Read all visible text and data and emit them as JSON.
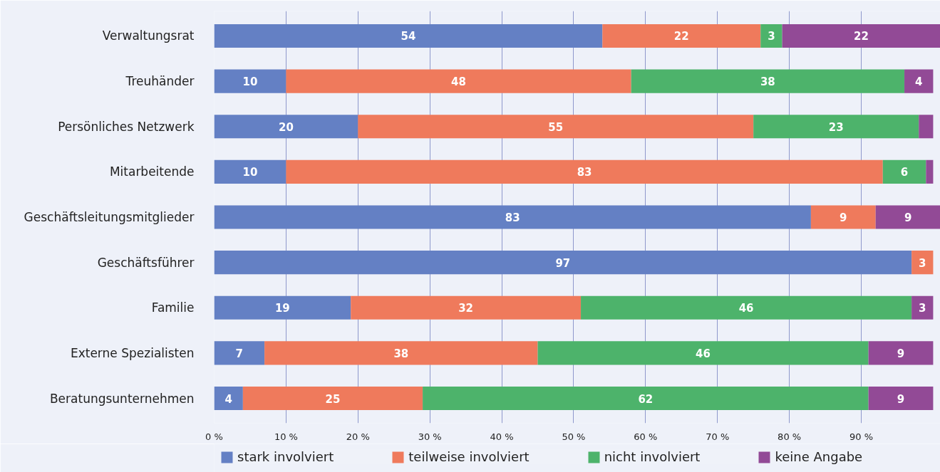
{
  "chart_data": {
    "type": "bar",
    "orientation": "horizontal",
    "stacked": true,
    "categories": [
      "Verwaltungsrat",
      "Treuhänder",
      "Persönliches Netzwerk",
      "Mitarbeitende",
      "Geschäftsleitungsmitglieder",
      "Geschäftsführer",
      "Familie",
      "Externe Spezialisten",
      "Beratungsunternehmen"
    ],
    "series": [
      {
        "name": "stark involviert",
        "color": "#6480c4",
        "values": [
          54,
          10,
          20,
          10,
          83,
          97,
          19,
          7,
          4
        ],
        "value_labels": [
          "54",
          "10",
          "20",
          "10",
          "83",
          "97",
          "19",
          "7",
          "4"
        ]
      },
      {
        "name": "teilweise involviert",
        "color": "#ef7a5c",
        "values": [
          22,
          48,
          55,
          83,
          9,
          3,
          32,
          38,
          25
        ],
        "value_labels": [
          "22",
          "48",
          "55",
          "83",
          "9",
          "3",
          "32",
          "38",
          "25"
        ]
      },
      {
        "name": "nicht involviert",
        "color": "#4db36b",
        "values": [
          3,
          38,
          23,
          6,
          0,
          0,
          46,
          46,
          62
        ],
        "value_labels": [
          "3",
          "38",
          "23",
          "6",
          null,
          null,
          "46",
          "46",
          "62"
        ]
      },
      {
        "name": "keine Angabe",
        "color": "#924a96",
        "values": [
          22,
          4,
          2,
          1,
          9,
          0,
          3,
          9,
          9
        ],
        "value_labels": [
          "22",
          "4",
          null,
          null,
          "9",
          null,
          "3",
          "9",
          "9"
        ]
      }
    ],
    "xlim": [
      0,
      101
    ],
    "xticks": [
      {
        "value": 0,
        "label": "0 %"
      },
      {
        "value": 10,
        "label": "10 %"
      },
      {
        "value": 20,
        "label": "20 %"
      },
      {
        "value": 30,
        "label": "30 %"
      },
      {
        "value": 40,
        "label": "40 %"
      },
      {
        "value": 50,
        "label": "50 %"
      },
      {
        "value": 60,
        "label": "60 %"
      },
      {
        "value": 70,
        "label": "70 %"
      },
      {
        "value": 80,
        "label": "80 %"
      },
      {
        "value": 90,
        "label": "90 %"
      }
    ],
    "grid": "x",
    "legend": "bottom"
  }
}
